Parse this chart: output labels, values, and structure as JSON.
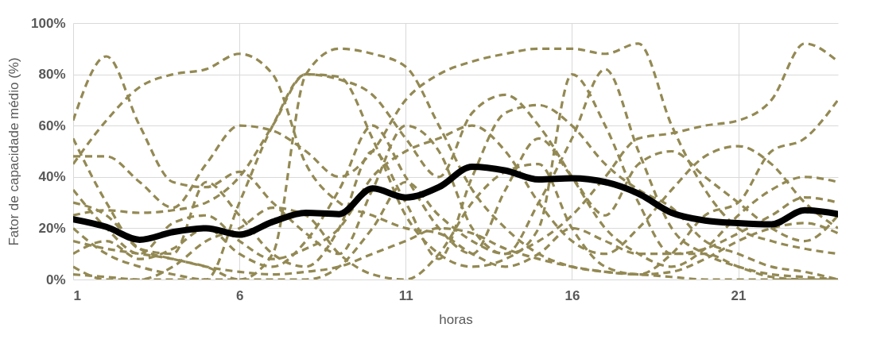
{
  "chart_data": {
    "type": "line",
    "xlabel": "horas",
    "ylabel": "Fator de capacidade médio (%)",
    "x": [
      1,
      2,
      3,
      4,
      5,
      6,
      7,
      8,
      9,
      10,
      11,
      12,
      13,
      14,
      15,
      16,
      17,
      18,
      19,
      20,
      21,
      22,
      23,
      24
    ],
    "xlim": [
      1,
      24
    ],
    "xticks": [
      1,
      6,
      11,
      16,
      21
    ],
    "ylim": [
      0,
      100
    ],
    "yticks": [
      {
        "value": 0,
        "label": "0%"
      },
      {
        "value": 20,
        "label": "20%"
      },
      {
        "value": 40,
        "label": "40%"
      },
      {
        "value": 60,
        "label": "60%"
      },
      {
        "value": 80,
        "label": "80%"
      },
      {
        "value": 100,
        "label": "100%"
      }
    ],
    "grid": true,
    "series": [
      {
        "color": "#938953",
        "line_style": "dashed",
        "values": [
          62,
          87,
          60,
          38,
          36,
          42,
          30,
          18,
          10,
          35,
          60,
          50,
          20,
          10,
          30,
          55,
          82,
          50,
          20,
          10,
          5,
          2,
          1,
          0
        ]
      },
      {
        "color": "#938953",
        "line_style": "dashed",
        "values": [
          45,
          62,
          75,
          80,
          82,
          88,
          80,
          45,
          30,
          25,
          20,
          18,
          10,
          5,
          10,
          20,
          15,
          10,
          10,
          12,
          18,
          25,
          32,
          30
        ]
      },
      {
        "color": "#938953",
        "line_style": "dashed",
        "values": [
          30,
          25,
          12,
          8,
          5,
          0,
          0,
          0,
          5,
          20,
          38,
          25,
          15,
          10,
          15,
          25,
          40,
          55,
          57,
          60,
          62,
          70,
          92,
          85
        ]
      },
      {
        "color": "#938953",
        "line_style": "dashed",
        "values": [
          48,
          48,
          38,
          28,
          45,
          60,
          58,
          50,
          40,
          50,
          70,
          80,
          85,
          88,
          90,
          90,
          88,
          92,
          60,
          35,
          20,
          15,
          12,
          10
        ]
      },
      {
        "color": "#938953",
        "line_style": "dashed",
        "values": [
          20,
          10,
          5,
          2,
          0,
          0,
          10,
          80,
          90,
          88,
          83,
          60,
          35,
          20,
          10,
          5,
          3,
          2,
          1,
          0,
          0,
          0,
          0,
          0
        ]
      },
      {
        "color": "#938953",
        "line_style": "dashed",
        "values": [
          5,
          0,
          0,
          0,
          0,
          30,
          60,
          80,
          79,
          55,
          25,
          10,
          5,
          8,
          20,
          80,
          60,
          30,
          10,
          10,
          5,
          1,
          0,
          0
        ]
      },
      {
        "color": "#938953",
        "line_style": "dashed",
        "values": [
          25,
          27,
          26,
          27,
          30,
          40,
          60,
          80,
          78,
          72,
          55,
          40,
          65,
          72,
          60,
          40,
          20,
          10,
          5,
          12,
          25,
          35,
          40,
          38
        ]
      },
      {
        "color": "#938953",
        "line_style": "dashed",
        "values": [
          10,
          15,
          8,
          12,
          20,
          10,
          5,
          15,
          35,
          60,
          40,
          20,
          10,
          35,
          55,
          40,
          25,
          45,
          50,
          40,
          30,
          20,
          15,
          25
        ]
      },
      {
        "color": "#938953",
        "line_style": "dashed",
        "values": [
          2,
          1,
          0,
          5,
          15,
          20,
          28,
          25,
          10,
          2,
          0,
          10,
          30,
          42,
          45,
          20,
          5,
          2,
          10,
          25,
          30,
          50,
          55,
          70
        ]
      },
      {
        "color": "#938953",
        "line_style": "dashed",
        "values": [
          35,
          20,
          10,
          22,
          25,
          15,
          8,
          12,
          20,
          40,
          50,
          55,
          60,
          50,
          30,
          15,
          10,
          20,
          35,
          48,
          52,
          45,
          30,
          20
        ]
      },
      {
        "color": "#938953",
        "line_style": "dashed",
        "values": [
          15,
          12,
          10,
          8,
          5,
          3,
          2,
          3,
          5,
          10,
          15,
          20,
          18,
          12,
          8,
          5,
          3,
          2,
          3,
          8,
          15,
          20,
          22,
          18
        ]
      },
      {
        "color": "#938953",
        "line_style": "dashed",
        "values": [
          55,
          30,
          12,
          10,
          38,
          25,
          10,
          5,
          20,
          50,
          30,
          8,
          40,
          65,
          68,
          60,
          45,
          35,
          28,
          15,
          10,
          5,
          3,
          0
        ]
      },
      {
        "color": "#000000",
        "line_style": "solid",
        "values": [
          23.5,
          20.5,
          15.5,
          18.5,
          20,
          17.5,
          22.5,
          26,
          25.5,
          35.5,
          32,
          36,
          44,
          42.5,
          39,
          39.5,
          38,
          33.5,
          26,
          23,
          22,
          21.5,
          27,
          25.5
        ]
      }
    ]
  }
}
